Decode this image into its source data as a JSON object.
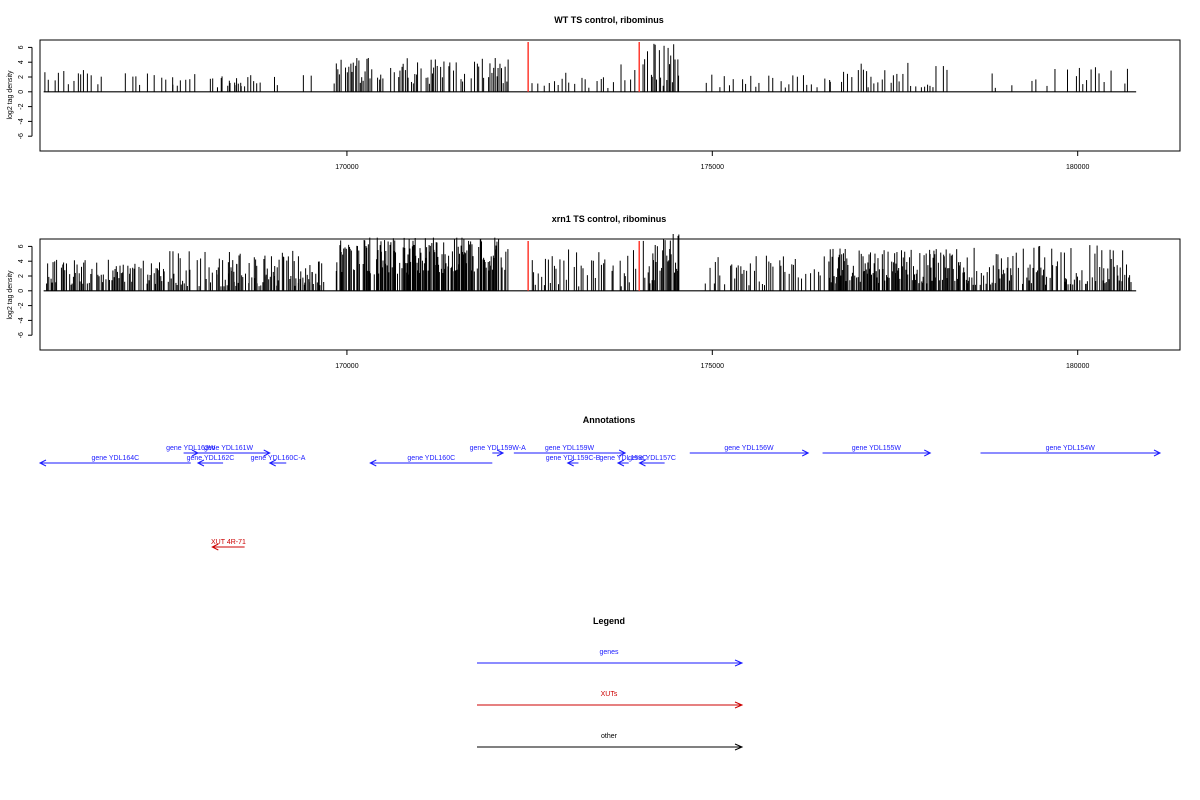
{
  "colors": {
    "signal": "#000000",
    "marker": "#ff3b30",
    "gene": "#1a1aff",
    "xut": "#cc0000",
    "other": "#000000",
    "frame": "#000000"
  },
  "chart_data": [
    {
      "type": "bar",
      "title": "WT TS control, ribominus",
      "ylabel": "log2 tag density",
      "yticks": [
        "6",
        "4",
        "2",
        "0",
        "-2",
        "-4",
        "-6"
      ],
      "ytick_values": [
        6,
        4,
        2,
        0,
        -2,
        -4,
        -6
      ],
      "ylim": [
        -8,
        7
      ],
      "xlim": [
        165800,
        181400
      ],
      "xticks": [
        "170000",
        "175000",
        "180000"
      ],
      "xtick_values": [
        170000,
        175000,
        180000
      ],
      "markers": [
        172480,
        174000
      ],
      "grid": false,
      "segments": [
        {
          "from": 165850,
          "to": 166650,
          "step": 45,
          "min": -3.2,
          "max": -0.6,
          "sign": -1
        },
        {
          "from": 166950,
          "to": 167600,
          "step": 50,
          "min": -2.6,
          "max": -0.8,
          "sign": -1
        },
        {
          "from": 167600,
          "to": 168000,
          "step": 60,
          "min": 0.6,
          "max": 2.4,
          "sign": 1
        },
        {
          "from": 168100,
          "to": 168500,
          "step": 60,
          "min": 0.5,
          "max": 2.6,
          "sign": 1
        },
        {
          "from": 168200,
          "to": 168600,
          "step": 80,
          "min": -2.2,
          "max": -0.6,
          "sign": -1
        },
        {
          "from": 168450,
          "to": 169050,
          "step": 45,
          "min": 0.6,
          "max": 2.8,
          "sign": 1
        },
        {
          "from": 169400,
          "to": 169600,
          "step": 70,
          "min": -2.6,
          "max": -1.0,
          "sign": -1
        },
        {
          "from": 169800,
          "to": 172200,
          "step": 22,
          "min": -4.6,
          "max": -1.0,
          "sign": -1
        },
        {
          "from": 172520,
          "to": 173950,
          "step": 45,
          "min": 0.5,
          "max": 3.8,
          "sign": 1
        },
        {
          "from": 174050,
          "to": 174550,
          "step": 18,
          "min": -6.8,
          "max": -0.8,
          "sign": -1
        },
        {
          "from": 174900,
          "to": 176600,
          "step": 60,
          "min": 0.5,
          "max": 2.4,
          "sign": 1
        },
        {
          "from": 176600,
          "to": 178200,
          "step": 38,
          "min": 0.6,
          "max": 4.2,
          "sign": 1
        },
        {
          "from": 178800,
          "to": 180700,
          "step": 55,
          "min": 0.5,
          "max": 3.4,
          "sign": 1
        }
      ]
    },
    {
      "type": "bar",
      "title": "xrn1 TS control, ribominus",
      "ylabel": "log2 tag density",
      "yticks": [
        "6",
        "4",
        "2",
        "0",
        "-2",
        "-4",
        "-6"
      ],
      "ytick_values": [
        6,
        4,
        2,
        0,
        -2,
        -4,
        -6
      ],
      "ylim": [
        -8,
        7
      ],
      "xlim": [
        165800,
        181400
      ],
      "xticks": [
        "170000",
        "175000",
        "180000"
      ],
      "xtick_values": [
        170000,
        175000,
        180000
      ],
      "markers": [
        172480,
        174000
      ],
      "grid": false,
      "segments": [
        {
          "from": 165850,
          "to": 167500,
          "step": 16,
          "min": -4.2,
          "max": -0.8,
          "sign": -1
        },
        {
          "from": 167550,
          "to": 169700,
          "step": 20,
          "min": 0.6,
          "max": 5.6,
          "sign": 1
        },
        {
          "from": 168200,
          "to": 169600,
          "step": 40,
          "min": -4.8,
          "max": -0.6,
          "sign": -1
        },
        {
          "from": 169850,
          "to": 172200,
          "step": 10,
          "min": -7.2,
          "max": -2.0,
          "sign": -1
        },
        {
          "from": 172520,
          "to": 173950,
          "step": 28,
          "min": 0.6,
          "max": 5.6,
          "sign": 1
        },
        {
          "from": 174050,
          "to": 174550,
          "step": 12,
          "min": -7.8,
          "max": -1.0,
          "sign": -1
        },
        {
          "from": 174900,
          "to": 176600,
          "step": 28,
          "min": 0.6,
          "max": 4.8,
          "sign": 1
        },
        {
          "from": 176600,
          "to": 178500,
          "step": 12,
          "min": 1.0,
          "max": 5.8,
          "sign": 1
        },
        {
          "from": 178500,
          "to": 180750,
          "step": 16,
          "min": 0.8,
          "max": 6.2,
          "sign": 1
        },
        {
          "from": 179800,
          "to": 180000,
          "step": 120,
          "min": -1.6,
          "max": -0.6,
          "sign": -1
        }
      ]
    }
  ],
  "annotations": {
    "title": "Annotations",
    "features": [
      {
        "label": "gene YDL164C",
        "start": 165800,
        "end": 167900,
        "strand": "-",
        "row": 1,
        "kind": "gene"
      },
      {
        "label": "gene YDL163W",
        "start": 167800,
        "end": 168000,
        "strand": "+",
        "row": 0,
        "kind": "gene"
      },
      {
        "label": "gene YDL162C",
        "start": 168000,
        "end": 168350,
        "strand": "-",
        "row": 1,
        "kind": "gene"
      },
      {
        "label": "gene YDL161W",
        "start": 167850,
        "end": 169000,
        "strand": "+",
        "row": 0,
        "kind": "gene"
      },
      {
        "label": "gene YDL160C-A",
        "start": 169000,
        "end": 169230,
        "strand": "-",
        "row": 1,
        "kind": "gene"
      },
      {
        "label": "gene YDL160C",
        "start": 170400,
        "end": 172100,
        "strand": "-",
        "row": 1,
        "kind": "gene"
      },
      {
        "label": "gene YDL159W-A",
        "start": 172100,
        "end": 172250,
        "strand": "+",
        "row": 0,
        "kind": "gene"
      },
      {
        "label": "gene YDL159W",
        "start": 172400,
        "end": 173950,
        "strand": "+",
        "row": 0,
        "kind": "gene"
      },
      {
        "label": "gene YDL159C-B",
        "start": 173150,
        "end": 173300,
        "strand": "-",
        "row": 1,
        "kind": "gene"
      },
      {
        "label": "gene YDL158C",
        "start": 173850,
        "end": 174000,
        "strand": "-",
        "row": 1,
        "kind": "gene"
      },
      {
        "label": "gene YDL157C",
        "start": 174150,
        "end": 174500,
        "strand": "-",
        "row": 1,
        "kind": "gene"
      },
      {
        "label": "gene YDL156W",
        "start": 174850,
        "end": 176500,
        "strand": "+",
        "row": 0,
        "kind": "gene"
      },
      {
        "label": "gene YDL155W",
        "start": 176700,
        "end": 178200,
        "strand": "+",
        "row": 0,
        "kind": "gene"
      },
      {
        "label": "gene YDL154W",
        "start": 178900,
        "end": 181400,
        "strand": "+",
        "row": 0,
        "kind": "gene"
      },
      {
        "label": "XUT 4R-71",
        "start": 168200,
        "end": 168650,
        "strand": "-",
        "row": 2,
        "kind": "xut"
      }
    ]
  },
  "legend": {
    "title": "Legend",
    "items": [
      {
        "label": "genes",
        "kind": "gene"
      },
      {
        "label": "XUTs",
        "kind": "xut"
      },
      {
        "label": "other",
        "kind": "other"
      }
    ]
  }
}
